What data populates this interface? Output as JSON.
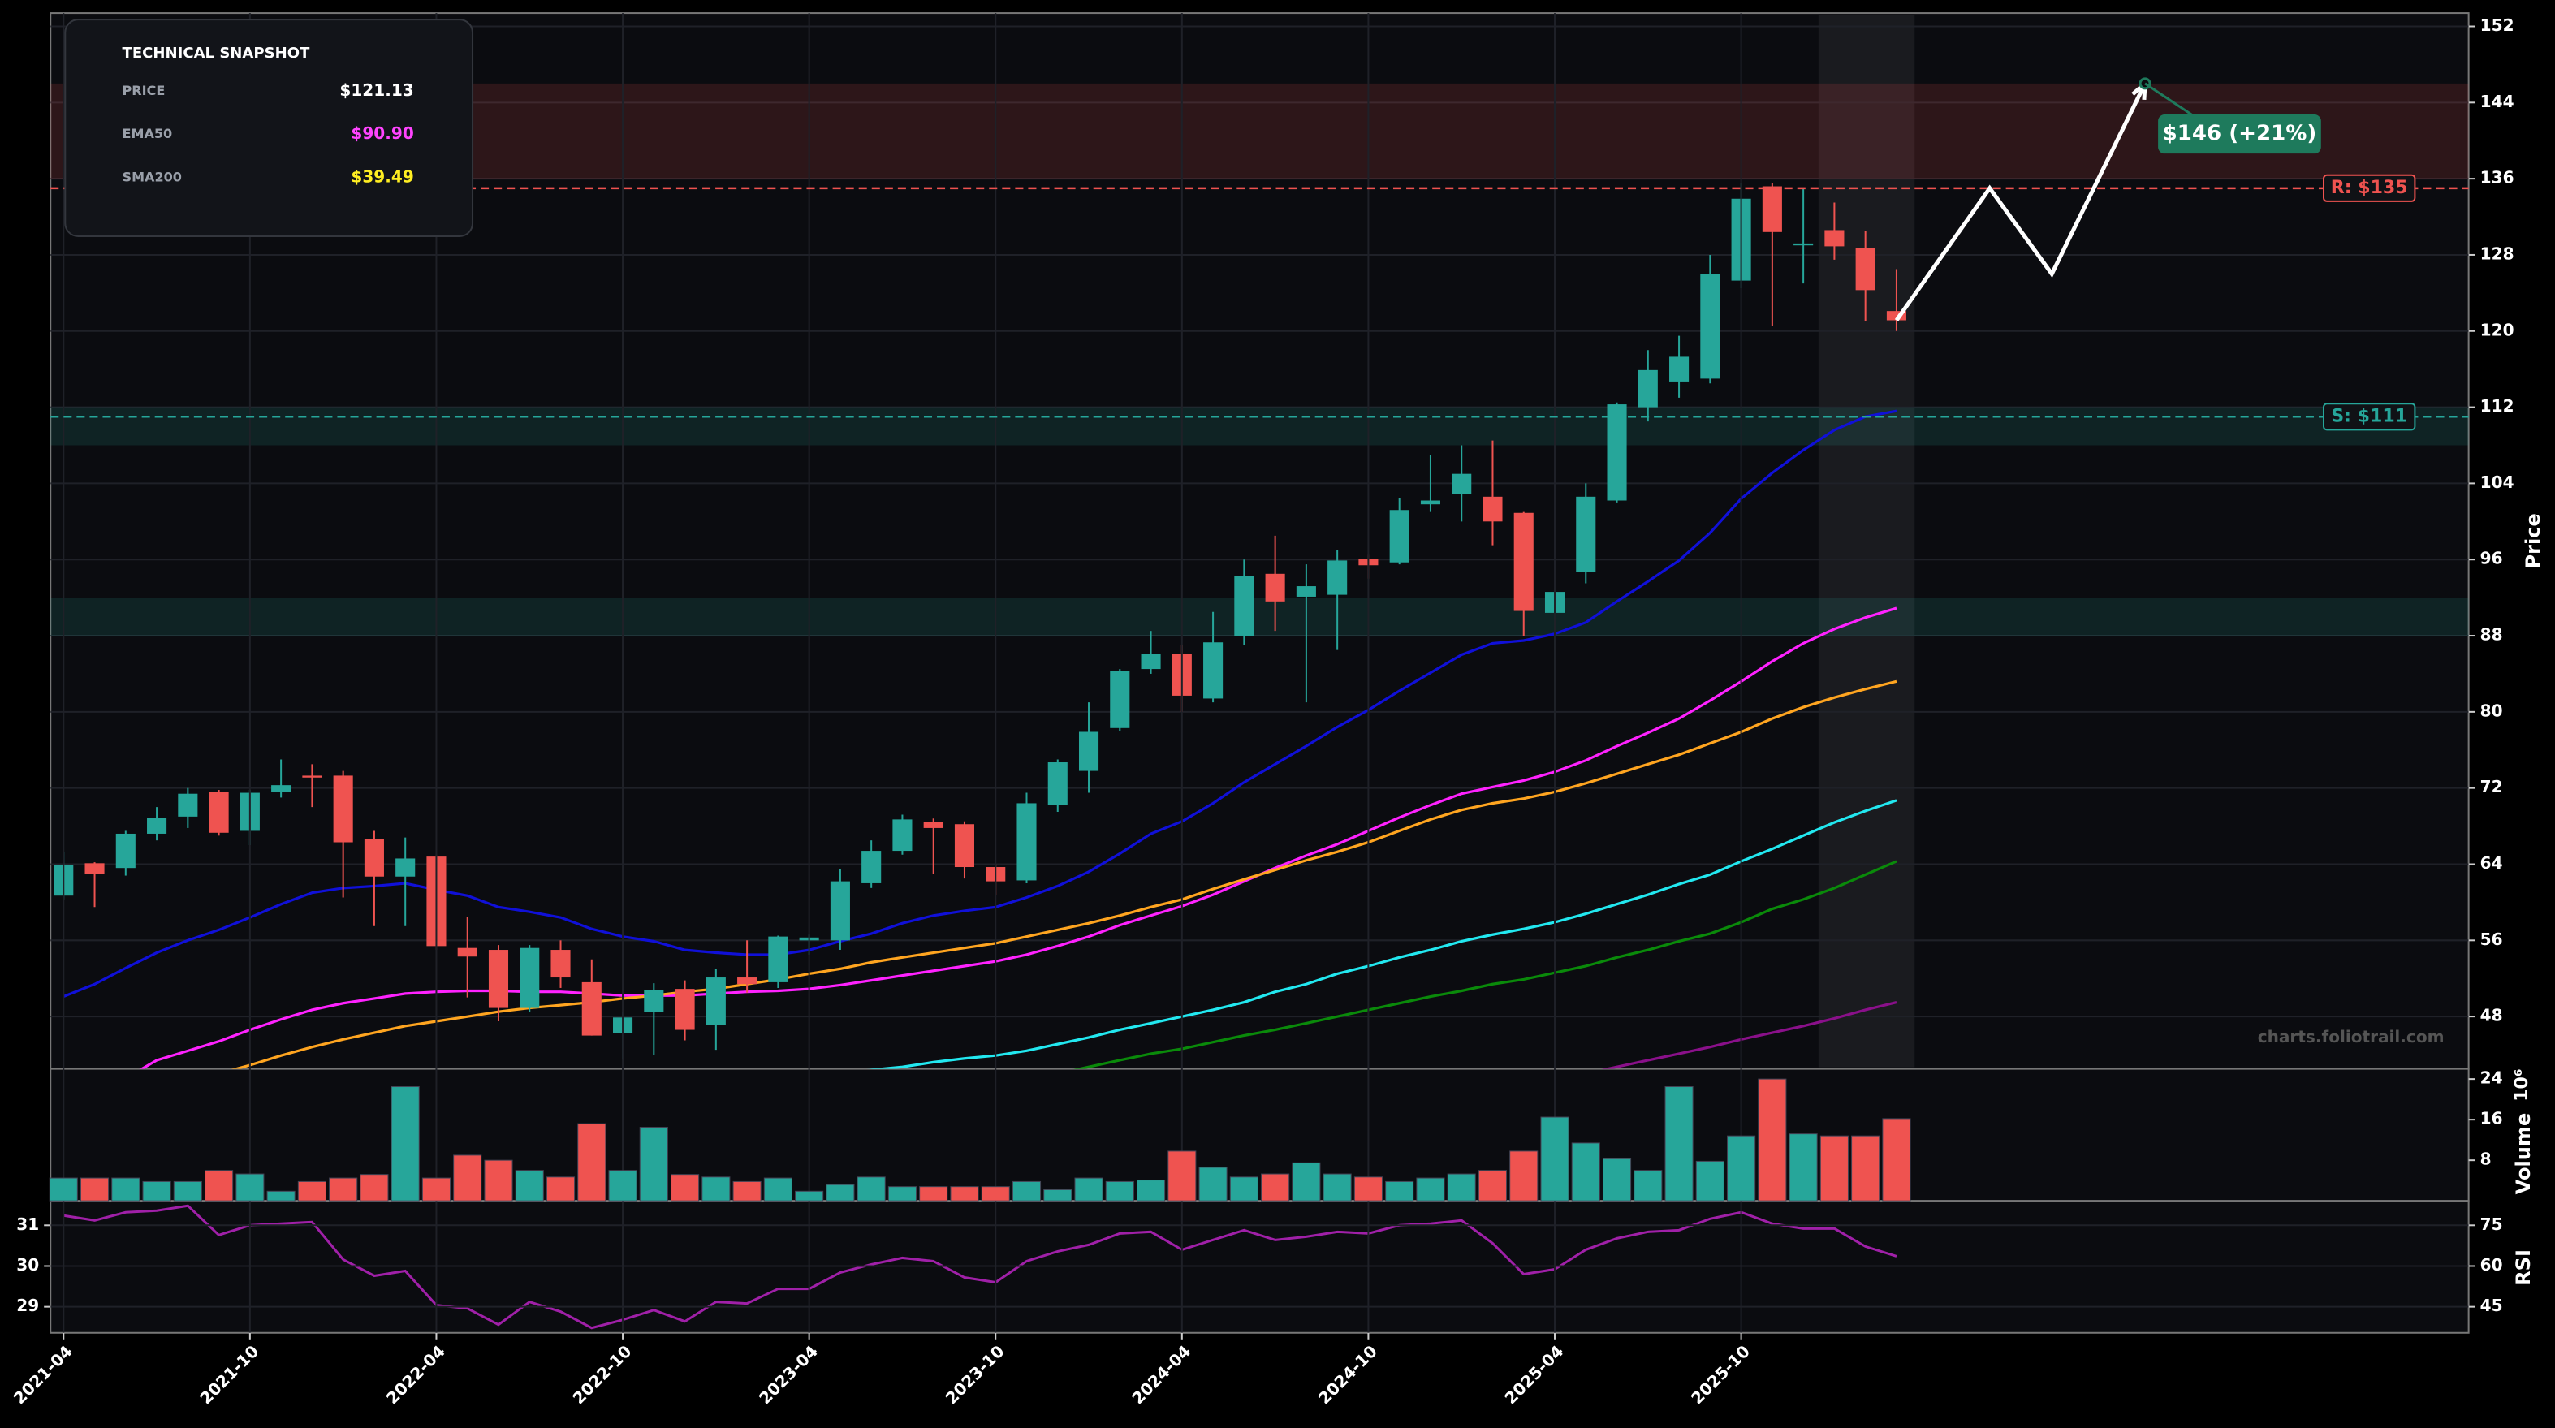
{
  "snapshot": {
    "title": "TECHNICAL SNAPSHOT",
    "rows": [
      {
        "label": "PRICE",
        "value": "$121.13",
        "color": "#ffffff"
      },
      {
        "label": "EMA50",
        "value": "$90.90",
        "color": "#ff44ff"
      },
      {
        "label": "SMA200",
        "value": "$39.49",
        "color": "#ffee22"
      }
    ]
  },
  "chart_data": [
    {
      "type": "candlestick",
      "y_label": "Price",
      "watermark": "charts.foliotrail.com",
      "up_color": "#26a69a",
      "down_color": "#ef5350",
      "grid": true,
      "x": [
        "2021-04",
        "2021-05",
        "2021-06",
        "2021-07",
        "2021-08",
        "2021-09",
        "2021-10",
        "2021-11",
        "2021-12",
        "2022-01",
        "2022-02",
        "2022-03",
        "2022-04",
        "2022-05",
        "2022-06",
        "2022-07",
        "2022-08",
        "2022-09",
        "2022-10",
        "2022-11",
        "2022-12",
        "2023-01",
        "2023-02",
        "2023-03",
        "2023-04",
        "2023-05",
        "2023-06",
        "2023-07",
        "2023-08",
        "2023-09",
        "2023-10",
        "2023-11",
        "2023-12",
        "2024-01",
        "2024-02",
        "2024-03",
        "2024-04",
        "2024-05",
        "2024-06",
        "2024-07",
        "2024-08",
        "2024-09",
        "2024-10",
        "2024-11",
        "2024-12",
        "2025-01",
        "2025-02",
        "2025-03",
        "2025-04",
        "2025-05",
        "2025-06",
        "2025-07",
        "2025-08",
        "2025-09",
        "2025-10",
        "2025-11",
        "2025-12",
        "2026-01",
        "2026-02",
        "2026-03"
      ],
      "open": [
        60.7,
        64.1,
        63.6,
        67.2,
        69.0,
        71.6,
        67.5,
        71.6,
        73.3,
        73.3,
        66.6,
        62.7,
        64.8,
        55.2,
        55.0,
        48.9,
        55.0,
        51.6,
        46.3,
        48.5,
        50.9,
        47.1,
        52.1,
        51.6,
        56.0,
        56.0,
        62.0,
        65.4,
        68.4,
        68.2,
        63.7,
        62.3,
        70.2,
        73.8,
        78.3,
        84.5,
        86.1,
        81.4,
        88.0,
        94.5,
        92.1,
        92.3,
        96.1,
        95.7,
        101.8,
        102.9,
        102.6,
        100.9,
        90.4,
        94.7,
        102.2,
        112.0,
        114.7,
        115.0,
        125.3,
        135.2,
        129.0,
        130.6,
        128.7,
        122.1
      ],
      "high": [
        65.3,
        64.2,
        67.5,
        70.0,
        72.0,
        71.8,
        71.8,
        75.0,
        74.5,
        73.8,
        67.5,
        66.8,
        65.0,
        58.5,
        55.5,
        55.5,
        56.0,
        54.0,
        48.5,
        51.5,
        51.8,
        53.0,
        56.0,
        56.5,
        56.6,
        63.5,
        66.5,
        69.2,
        68.8,
        68.5,
        64.0,
        71.5,
        75.0,
        81.0,
        84.5,
        88.5,
        87.0,
        90.5,
        96.0,
        98.5,
        95.5,
        97.0,
        96.5,
        102.5,
        107.0,
        108.0,
        108.5,
        101.0,
        93.0,
        104.0,
        112.5,
        118.0,
        119.5,
        128.0,
        135.5,
        135.5,
        135.0,
        133.5,
        130.5,
        126.5
      ],
      "low": [
        60.3,
        59.5,
        62.8,
        66.5,
        67.8,
        67.0,
        66.0,
        71.0,
        70.0,
        60.5,
        57.5,
        57.5,
        55.0,
        50.0,
        47.5,
        48.5,
        51.0,
        46.0,
        43.5,
        44.0,
        45.5,
        44.5,
        50.5,
        51.0,
        54.5,
        55.0,
        61.5,
        65.0,
        63.0,
        62.5,
        60.8,
        62.0,
        69.5,
        71.5,
        78.0,
        84.0,
        80.0,
        81.0,
        87.0,
        88.5,
        81.0,
        86.5,
        94.0,
        95.5,
        101.0,
        100.0,
        97.5,
        88.0,
        76.0,
        93.5,
        102.0,
        110.5,
        113.0,
        114.5,
        124.5,
        120.5,
        125.0,
        127.5,
        121.0,
        120.0
      ],
      "close": [
        63.9,
        63.0,
        67.2,
        68.9,
        71.4,
        67.3,
        71.5,
        72.3,
        73.1,
        66.3,
        62.7,
        64.6,
        55.4,
        54.3,
        48.9,
        55.2,
        52.1,
        46.0,
        47.9,
        50.8,
        46.6,
        52.1,
        51.4,
        56.4,
        56.3,
        62.2,
        65.4,
        68.7,
        67.8,
        63.7,
        62.2,
        70.4,
        74.7,
        77.9,
        84.3,
        86.1,
        81.7,
        87.3,
        94.3,
        91.6,
        93.2,
        95.9,
        95.4,
        101.2,
        102.2,
        105.0,
        100.0,
        90.6,
        92.6,
        102.6,
        112.3,
        115.9,
        117.3,
        126.0,
        133.9,
        130.4,
        129.2,
        128.9,
        124.3,
        121.13
      ],
      "series": [
        {
          "color": "#1010d8",
          "values": [
            50.1,
            51.4,
            53.1,
            54.7,
            56.0,
            57.1,
            58.4,
            59.8,
            61.0,
            61.5,
            61.7,
            62.0,
            61.3,
            60.7,
            59.5,
            59.0,
            58.4,
            57.2,
            56.4,
            55.9,
            55.0,
            54.7,
            54.5,
            54.5,
            55.0,
            55.9,
            56.7,
            57.8,
            58.6,
            59.1,
            59.5,
            60.5,
            61.7,
            63.2,
            65.1,
            67.2,
            68.5,
            70.4,
            72.6,
            74.5,
            76.4,
            78.4,
            80.2,
            82.2,
            84.1,
            86.0,
            87.2,
            87.5,
            88.2,
            89.4,
            91.6,
            93.7,
            95.9,
            98.8,
            102.4,
            105.1,
            107.5,
            109.6,
            111.0,
            111.6
          ]
        },
        {
          "color": "#ff22ff",
          "values": [
            null,
            null,
            41.5,
            43.4,
            44.4,
            45.4,
            46.6,
            47.7,
            48.7,
            49.4,
            49.9,
            50.4,
            50.6,
            50.7,
            50.7,
            50.6,
            50.6,
            50.4,
            50.2,
            50.2,
            50.2,
            50.4,
            50.6,
            50.7,
            50.9,
            51.3,
            51.8,
            52.3,
            52.8,
            53.3,
            53.8,
            54.5,
            55.4,
            56.4,
            57.6,
            58.6,
            59.6,
            60.8,
            62.2,
            63.6,
            64.9,
            66.1,
            67.5,
            68.9,
            70.2,
            71.4,
            72.1,
            72.8,
            73.7,
            74.9,
            76.4,
            77.8,
            79.3,
            81.2,
            83.2,
            85.3,
            87.2,
            88.7,
            89.9,
            90.9
          ]
        },
        {
          "color": "#ffa520",
          "values": [
            null,
            null,
            null,
            null,
            null,
            42.0,
            42.9,
            43.9,
            44.8,
            45.6,
            46.3,
            47.0,
            47.5,
            48.0,
            48.5,
            48.9,
            49.2,
            49.5,
            49.9,
            50.2,
            50.6,
            50.9,
            51.4,
            51.9,
            52.5,
            53.0,
            53.7,
            54.2,
            54.7,
            55.2,
            55.7,
            56.4,
            57.1,
            57.8,
            58.6,
            59.5,
            60.3,
            61.4,
            62.4,
            63.4,
            64.4,
            65.3,
            66.3,
            67.5,
            68.7,
            69.7,
            70.4,
            70.9,
            71.6,
            72.5,
            73.5,
            74.5,
            75.5,
            76.7,
            77.9,
            79.3,
            80.5,
            81.5,
            82.4,
            83.2
          ]
        },
        {
          "color": "#22e8f0",
          "values": [
            null,
            null,
            null,
            null,
            null,
            null,
            null,
            null,
            null,
            null,
            null,
            null,
            null,
            null,
            null,
            null,
            null,
            null,
            null,
            null,
            null,
            null,
            null,
            null,
            null,
            42.0,
            42.4,
            42.7,
            43.2,
            43.6,
            43.9,
            44.4,
            45.1,
            45.8,
            46.6,
            47.3,
            48.0,
            48.7,
            49.5,
            50.6,
            51.4,
            52.5,
            53.3,
            54.2,
            55.0,
            55.9,
            56.6,
            57.2,
            57.9,
            58.8,
            59.8,
            60.8,
            61.9,
            62.9,
            64.3,
            65.6,
            67.0,
            68.4,
            69.6,
            70.7
          ]
        },
        {
          "color": "#0a8a0a",
          "values": [
            null,
            null,
            null,
            null,
            null,
            null,
            null,
            null,
            null,
            null,
            null,
            null,
            null,
            null,
            null,
            null,
            null,
            null,
            null,
            null,
            null,
            null,
            null,
            null,
            null,
            null,
            null,
            null,
            null,
            null,
            null,
            null,
            42.0,
            42.7,
            43.4,
            44.1,
            44.6,
            45.3,
            46.0,
            46.6,
            47.3,
            48.0,
            48.7,
            49.4,
            50.1,
            50.7,
            51.4,
            51.9,
            52.6,
            53.3,
            54.2,
            55.0,
            55.9,
            56.7,
            57.9,
            59.3,
            60.3,
            61.5,
            62.9,
            64.3
          ]
        },
        {
          "color": "#8a108a",
          "values": [
            null,
            null,
            null,
            null,
            null,
            null,
            null,
            null,
            null,
            null,
            null,
            null,
            null,
            null,
            null,
            null,
            null,
            null,
            null,
            null,
            null,
            null,
            null,
            null,
            null,
            null,
            null,
            null,
            null,
            null,
            null,
            null,
            null,
            null,
            null,
            null,
            null,
            null,
            null,
            null,
            null,
            null,
            null,
            null,
            null,
            null,
            null,
            null,
            null,
            42.0,
            42.7,
            43.4,
            44.1,
            44.8,
            45.6,
            46.3,
            47.0,
            47.8,
            48.7,
            49.5
          ]
        }
      ],
      "levels": [
        {
          "value": 135,
          "label": "R: $135",
          "color": "#ef5350"
        },
        {
          "value": 111,
          "label": "S: $111",
          "color": "#26a69a"
        }
      ],
      "zones": [
        {
          "range": [
            136,
            146
          ],
          "color": "#ef5350"
        },
        {
          "range": [
            108,
            112
          ],
          "color": "#26a69a"
        },
        {
          "range": [
            88,
            92
          ],
          "color": "#26a69a"
        }
      ],
      "forecast": {
        "x": [
          "2026-03",
          "2026-06",
          "2026-08",
          "2026-11"
        ],
        "values": [
          121.13,
          135,
          126,
          146
        ],
        "color": "#ffffff",
        "label": "$146 (+21%)",
        "label_color": "#1e7a5c"
      },
      "xlim": [
        "2021-04",
        "2027-08"
      ],
      "xticks": [
        "2021-04",
        "2021-10",
        "2022-04",
        "2022-10",
        "2023-04",
        "2023-10",
        "2024-04",
        "2024-10",
        "2025-04",
        "2025-10"
      ],
      "ylim": [
        42.5,
        153.4
      ],
      "yticks": [
        48,
        56,
        64,
        72,
        80,
        88,
        96,
        104,
        112,
        120,
        128,
        136,
        144,
        152
      ]
    },
    {
      "type": "bar",
      "y_label": "Volume",
      "y_label_unit": "10⁶",
      "values": [
        4.5,
        4.5,
        4.5,
        3.8,
        3.8,
        6.0,
        5.3,
        1.9,
        3.8,
        4.5,
        5.2,
        22.5,
        4.5,
        9.0,
        8.0,
        6.0,
        4.7,
        15.2,
        6.0,
        14.5,
        5.2,
        4.7,
        3.8,
        4.5,
        1.9,
        3.2,
        4.7,
        2.8,
        2.8,
        2.8,
        2.8,
        3.8,
        2.2,
        4.5,
        3.8,
        4.1,
        9.8,
        6.6,
        4.7,
        5.3,
        7.5,
        5.3,
        4.7,
        3.8,
        4.5,
        5.3,
        6.0,
        9.8,
        16.5,
        11.4,
        8.3,
        6.0,
        22.5,
        7.8,
        12.8,
        24.0,
        13.2,
        12.8,
        12.8,
        16.2
      ],
      "ylim": [
        0,
        26
      ],
      "yticks": [
        8,
        16,
        24
      ]
    },
    {
      "type": "line",
      "y_label": "RSI",
      "color": "#a020a8",
      "values": [
        78.6,
        76.8,
        79.8,
        80.4,
        82.2,
        71.4,
        75.0,
        75.6,
        76.2,
        62.4,
        56.4,
        58.2,
        45.6,
        44.4,
        38.4,
        46.8,
        43.2,
        37.2,
        40.2,
        43.8,
        39.6,
        46.8,
        46.2,
        51.6,
        51.6,
        57.6,
        60.6,
        63.0,
        61.8,
        55.8,
        54.0,
        61.8,
        65.4,
        67.8,
        72.0,
        72.6,
        66.0,
        69.6,
        73.2,
        69.6,
        70.8,
        72.6,
        72.0,
        75.0,
        75.6,
        76.8,
        68.4,
        57.0,
        58.8,
        66.0,
        70.2,
        72.6,
        73.2,
        77.4,
        79.8,
        75.6,
        73.8,
        73.8,
        67.2,
        63.6
      ],
      "ylim": [
        35.4,
        84
      ],
      "yticks": [
        45,
        60,
        75
      ],
      "y2lim": [
        28.36,
        31.6
      ],
      "y2ticks": [
        29,
        30,
        31
      ]
    }
  ]
}
